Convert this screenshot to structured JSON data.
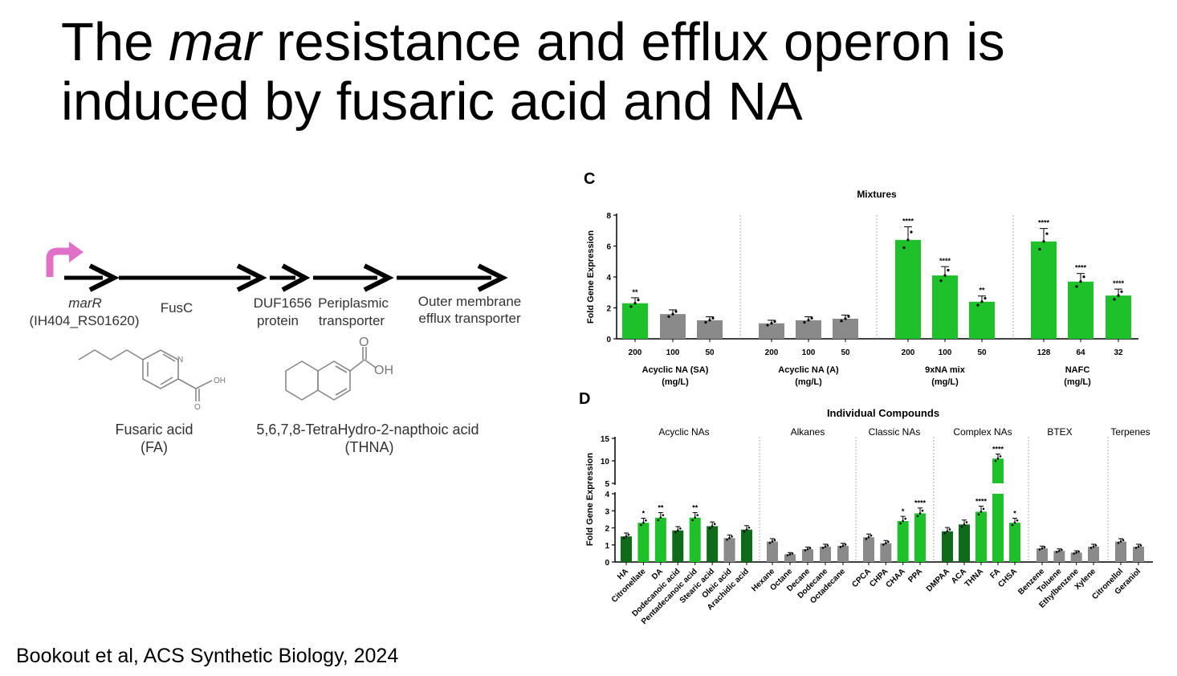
{
  "slide": {
    "title_line1_a": "The ",
    "title_line1_italic": "mar",
    "title_line1_b": " resistance and efflux operon is",
    "title_line2": "induced by fusaric acid and NA",
    "citation": "Bookout et al, ACS Synthetic Biology, 2024"
  },
  "operon": {
    "genes": [
      {
        "name": "marR",
        "sub": "(IH404_RS01620)"
      },
      {
        "name": "FusC",
        "sub": ""
      },
      {
        "name": "DUF1656",
        "sub": "protein"
      },
      {
        "name": "Periplasmic",
        "sub": "transporter"
      },
      {
        "name": "Outer membrane",
        "sub": "efflux transporter"
      }
    ],
    "compounds": [
      {
        "name": "Fusaric acid",
        "abbr": "(FA)",
        "label_atom": "N",
        "label_oh": "OH",
        "label_o": "O"
      },
      {
        "name": "5,6,7,8-TetraHydro-2-napthoic acid",
        "abbr": "(THNA)",
        "label_o": "O",
        "label_oh": "OH"
      }
    ],
    "colors": {
      "promoter": "#e070c8",
      "arrow": "#000000"
    }
  },
  "chart_data": [
    {
      "panel": "C",
      "type": "bar",
      "title": "Mixtures",
      "ylabel": "Fold Gene Expression",
      "ylim": [
        0,
        8
      ],
      "yticks": [
        0,
        2,
        4,
        6,
        8
      ],
      "groups": [
        {
          "label1": "Acyclic NA (SA)",
          "label2": "(mg/L)",
          "categories": [
            "200",
            "100",
            "50"
          ],
          "values": [
            2.3,
            1.6,
            1.2
          ],
          "color": [
            "#1fc12b",
            "#8a8a8a",
            "#8a8a8a"
          ],
          "sig": [
            "**",
            "",
            ""
          ]
        },
        {
          "label1": "Acyclic NA (A)",
          "label2": "(mg/L)",
          "categories": [
            "200",
            "100",
            "50"
          ],
          "values": [
            1.0,
            1.2,
            1.3
          ],
          "color": [
            "#8a8a8a",
            "#8a8a8a",
            "#8a8a8a"
          ],
          "sig": [
            "",
            "",
            ""
          ]
        },
        {
          "label1": "9xNA mix",
          "label2": "(mg/L)",
          "categories": [
            "200",
            "100",
            "50"
          ],
          "values": [
            6.4,
            4.1,
            2.4
          ],
          "color": [
            "#1fc12b",
            "#1fc12b",
            "#1fc12b"
          ],
          "sig": [
            "****",
            "****",
            "**"
          ]
        },
        {
          "label1": "NAFC",
          "label2": "(mg/L)",
          "categories": [
            "128",
            "64",
            "32"
          ],
          "values": [
            6.3,
            3.7,
            2.8
          ],
          "color": [
            "#1fc12b",
            "#1fc12b",
            "#1fc12b"
          ],
          "sig": [
            "****",
            "****",
            "****"
          ]
        }
      ]
    },
    {
      "panel": "D",
      "type": "bar",
      "title": "Individual Compounds",
      "ylabel": "Fold Gene Expression",
      "ylim_lower": [
        0,
        4
      ],
      "yticks_lower": [
        0,
        1,
        2,
        3,
        4
      ],
      "ylim_upper": [
        5,
        15
      ],
      "yticks_upper": [
        5,
        10,
        15
      ],
      "groups": [
        {
          "label": "Acyclic NAs",
          "categories": [
            "HA",
            "Citronellate",
            "DA",
            "Dodecanoic acid",
            "Pentadecanoic acid",
            "Stearic acid",
            "Oleic acid",
            "Arachidic acid"
          ],
          "values": [
            1.5,
            2.3,
            2.6,
            1.85,
            2.6,
            2.1,
            1.4,
            1.9
          ],
          "color": [
            "#0e6b19",
            "#1fc12b",
            "#1fc12b",
            "#0e6b19",
            "#1fc12b",
            "#0e6b19",
            "#8a8a8a",
            "#0e6b19"
          ],
          "sig": [
            "",
            "*",
            "**",
            "",
            "**",
            "",
            "",
            ""
          ]
        },
        {
          "label": "Alkanes",
          "categories": [
            "Hexane",
            "Octane",
            "Decane",
            "Dodecane",
            "Octadecane"
          ],
          "values": [
            1.2,
            0.45,
            0.75,
            0.9,
            0.95
          ],
          "color": [
            "#8a8a8a",
            "#8a8a8a",
            "#8a8a8a",
            "#8a8a8a",
            "#8a8a8a"
          ],
          "sig": [
            "",
            "",
            "",
            "",
            ""
          ]
        },
        {
          "label": "Classic NAs",
          "categories": [
            "CPCA",
            "CHPA",
            "CHAA",
            "PPA"
          ],
          "values": [
            1.45,
            1.1,
            2.4,
            2.85
          ],
          "color": [
            "#8a8a8a",
            "#8a8a8a",
            "#1fc12b",
            "#1fc12b"
          ],
          "sig": [
            "",
            "",
            "*",
            "****"
          ]
        },
        {
          "label": "Complex NAs",
          "categories": [
            "DMPAA",
            "ACA",
            "THNA",
            "FA",
            "CHSA"
          ],
          "values": [
            1.8,
            2.2,
            2.95,
            10.5,
            2.3
          ],
          "color": [
            "#0e6b19",
            "#0e6b19",
            "#1fc12b",
            "#1fc12b",
            "#1fc12b"
          ],
          "sig": [
            "",
            "",
            "****",
            "****",
            "*"
          ]
        },
        {
          "label": "BTEX",
          "categories": [
            "Benzene",
            "Toluene",
            "Ethylbenzene",
            "Xylene"
          ],
          "values": [
            0.8,
            0.65,
            0.55,
            0.9
          ],
          "color": [
            "#8a8a8a",
            "#8a8a8a",
            "#8a8a8a",
            "#8a8a8a"
          ],
          "sig": [
            "",
            "",
            "",
            ""
          ]
        },
        {
          "label": "Terpenes",
          "categories": [
            "Citronellol",
            "Geraniol"
          ],
          "values": [
            1.2,
            0.9
          ],
          "color": [
            "#8a8a8a",
            "#8a8a8a"
          ],
          "sig": [
            "",
            ""
          ]
        }
      ]
    }
  ]
}
